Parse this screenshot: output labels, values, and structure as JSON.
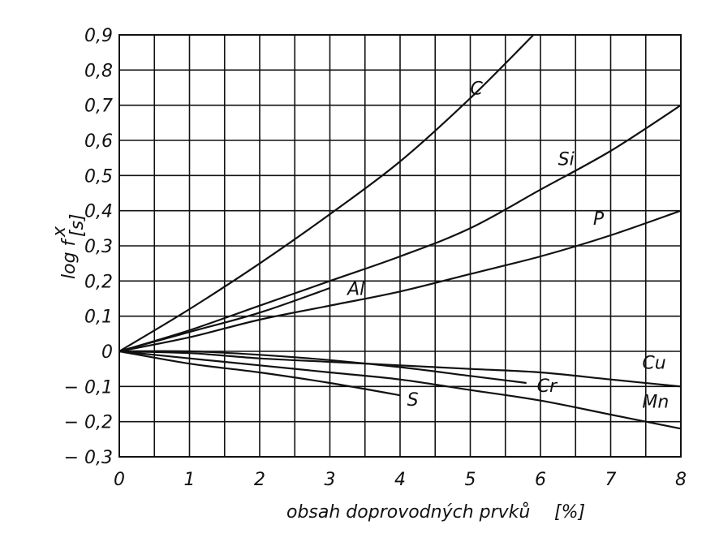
{
  "chart_data": {
    "type": "line",
    "xlabel_text": "obsah doprovodných prvků",
    "xlabel_unit": "[%]",
    "ylabel_main": "log f",
    "ylabel_sup": "x",
    "ylabel_sub": "[s]",
    "xlim": [
      0,
      8
    ],
    "ylim": [
      -0.3,
      0.9
    ],
    "x_ticks": [
      0,
      1,
      2,
      3,
      4,
      5,
      6,
      7,
      8
    ],
    "x_tick_labels": [
      "0",
      "1",
      "2",
      "3",
      "4",
      "5",
      "6",
      "7",
      "8"
    ],
    "y_ticks": [
      -0.3,
      -0.2,
      -0.1,
      0,
      0.1,
      0.2,
      0.3,
      0.4,
      0.5,
      0.6,
      0.7,
      0.8,
      0.9
    ],
    "y_tick_labels": [
      "− 0,3",
      "− 0,2",
      "− 0,1",
      "0",
      "0,1",
      "0,2",
      "0,3",
      "0,4",
      "0,5",
      "0,6",
      "0,7",
      "0,8",
      "0,9"
    ],
    "grid_x_step": 0.5,
    "grid_y_step": 0.1,
    "grid": true,
    "series": [
      {
        "name": "C",
        "x": [
          0,
          1,
          2,
          3,
          4,
          5,
          5.9
        ],
        "y": [
          0,
          0.12,
          0.25,
          0.39,
          0.54,
          0.72,
          0.9
        ],
        "label_at": [
          5,
          0.73
        ]
      },
      {
        "name": "Si",
        "x": [
          0,
          1,
          2,
          3,
          4,
          5,
          6,
          7,
          8
        ],
        "y": [
          0,
          0.06,
          0.13,
          0.2,
          0.27,
          0.35,
          0.46,
          0.57,
          0.7
        ],
        "label_at": [
          6.25,
          0.53
        ]
      },
      {
        "name": "Al",
        "x": [
          0,
          1,
          2,
          3
        ],
        "y": [
          0,
          0.055,
          0.11,
          0.18
        ],
        "label_at": [
          3.25,
          0.16
        ]
      },
      {
        "name": "P",
        "x": [
          0,
          1,
          2,
          3,
          4,
          5,
          6,
          7,
          8
        ],
        "y": [
          0,
          0.04,
          0.09,
          0.13,
          0.17,
          0.22,
          0.27,
          0.33,
          0.4
        ],
        "label_at": [
          6.75,
          0.36
        ]
      },
      {
        "name": "Cu",
        "x": [
          0,
          1,
          2,
          3,
          4,
          5,
          6,
          7,
          8
        ],
        "y": [
          0,
          -0.005,
          -0.02,
          -0.03,
          -0.04,
          -0.05,
          -0.06,
          -0.08,
          -0.1
        ],
        "label_at": [
          7.45,
          -0.05
        ]
      },
      {
        "name": "Cr",
        "x": [
          0,
          1,
          2,
          3,
          4,
          5,
          5.8
        ],
        "y": [
          0,
          0.0,
          -0.01,
          -0.025,
          -0.045,
          -0.07,
          -0.09
        ],
        "label_at": [
          5.95,
          -0.115
        ]
      },
      {
        "name": "Mn",
        "x": [
          0,
          1,
          2,
          3,
          4,
          5,
          6,
          7,
          8
        ],
        "y": [
          0,
          -0.02,
          -0.04,
          -0.06,
          -0.08,
          -0.11,
          -0.14,
          -0.18,
          -0.22
        ],
        "label_at": [
          7.45,
          -0.16
        ]
      },
      {
        "name": "S",
        "x": [
          0,
          1,
          2,
          3,
          4
        ],
        "y": [
          0,
          -0.035,
          -0.06,
          -0.09,
          -0.125
        ],
        "label_at": [
          4.1,
          -0.155
        ]
      }
    ]
  }
}
